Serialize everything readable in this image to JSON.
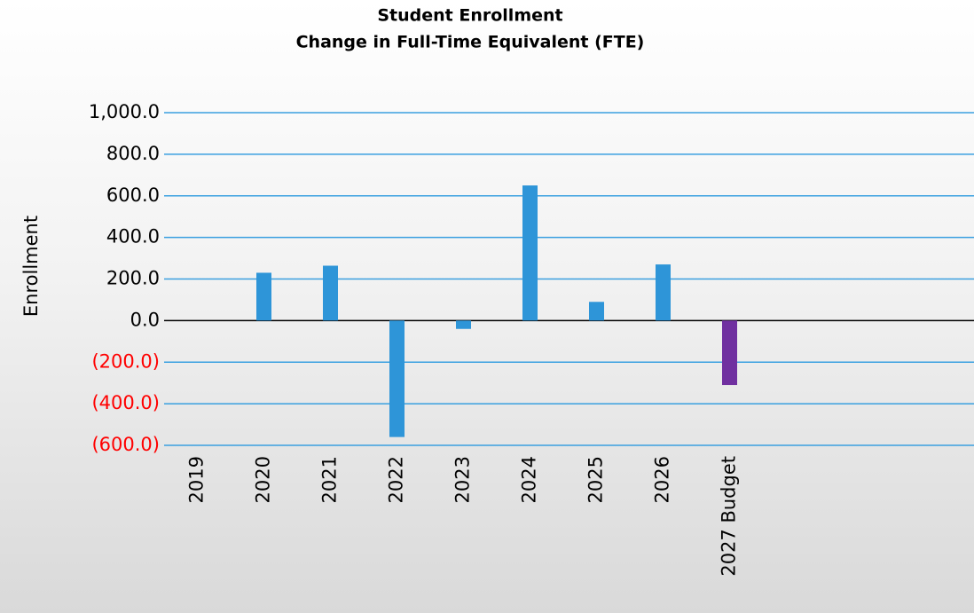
{
  "chart_data": {
    "type": "bar",
    "title": "Student Enrollment",
    "subtitle": "Change in Full-Time Equivalent (FTE)",
    "y_label": "Enrollment",
    "categories": [
      "2019",
      "2020",
      "2021",
      "2022",
      "2023",
      "2024",
      "2025",
      "2026",
      "2027 Budget",
      null,
      null,
      null
    ],
    "values": [
      0,
      230,
      264,
      -560,
      -40,
      650,
      90,
      270,
      -310,
      null,
      null,
      null
    ],
    "colors": [
      "#2e95d8",
      "#2e95d8",
      "#2e95d8",
      "#2e95d8",
      "#2e95d8",
      "#2e95d8",
      "#2e95d8",
      "#2e95d8",
      "#7030a0",
      "#2e95d8",
      "#2e95d8",
      "#2e95d8"
    ],
    "ylim": [
      -600,
      1000
    ],
    "yticks": [
      {
        "value": -600,
        "label": "(600.0)"
      },
      {
        "value": -400,
        "label": "(400.0)"
      },
      {
        "value": -200,
        "label": "(200.0)"
      },
      {
        "value": 0,
        "label": "0.0"
      },
      {
        "value": 200,
        "label": "200.0"
      },
      {
        "value": 400,
        "label": "400.0"
      },
      {
        "value": 600,
        "label": "600.0"
      },
      {
        "value": 800,
        "label": "800.0"
      },
      {
        "value": 1000,
        "label": "1,000.0"
      }
    ],
    "grid": true,
    "grid_color": "#3aa0e0",
    "zero_line_color": "#000000",
    "negative_tick_color": "#ff0000"
  }
}
